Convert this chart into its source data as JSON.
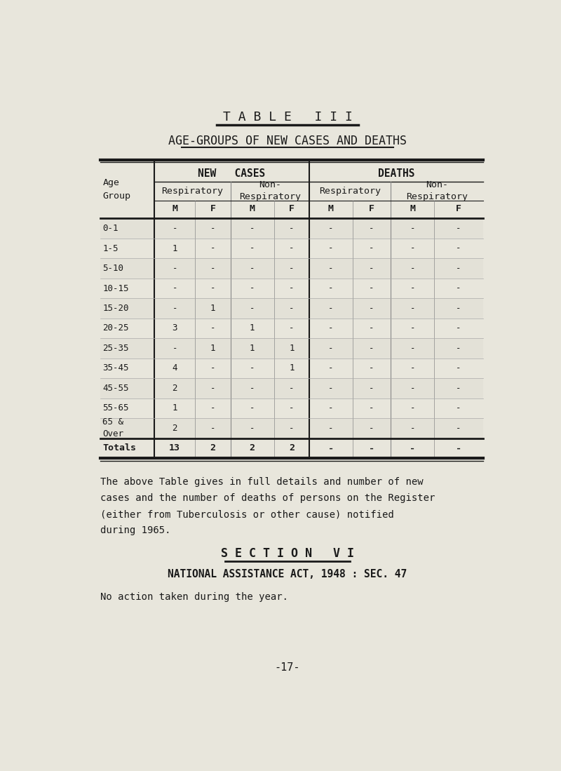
{
  "bg_color": "#e8e6dc",
  "title1": "T A B L E   I I I",
  "title2": "AGE-GROUPS OF NEW CASES AND DEATHS",
  "age_groups": [
    "0-1",
    "1-5",
    "5-10",
    "10-15",
    "15-20",
    "20-25",
    "25-35",
    "35-45",
    "45-55",
    "55-65",
    "65 &\nOver"
  ],
  "data": [
    [
      "-",
      "-",
      "-",
      "-",
      "-",
      "-",
      "-",
      "-"
    ],
    [
      "1",
      "-",
      "-",
      "-",
      "-",
      "-",
      "-",
      "-"
    ],
    [
      "-",
      "-",
      "-",
      "-",
      "-",
      "-",
      "-",
      "-"
    ],
    [
      "-",
      "-",
      "-",
      "-",
      "-",
      "-",
      "-",
      "-"
    ],
    [
      "-",
      "1",
      "-",
      "-",
      "-",
      "-",
      "-",
      "-"
    ],
    [
      "3",
      "-",
      "1",
      "-",
      "-",
      "-",
      "-",
      "-"
    ],
    [
      "-",
      "1",
      "1",
      "1",
      "-",
      "-",
      "-",
      "-"
    ],
    [
      "4",
      "-",
      "-",
      "1",
      "-",
      "-",
      "-",
      "-"
    ],
    [
      "2",
      "-",
      "-",
      "-",
      "-",
      "-",
      "-",
      "-"
    ],
    [
      "1",
      "-",
      "-",
      "-",
      "-",
      "-",
      "-",
      "-"
    ],
    [
      "2",
      "-",
      "-",
      "-",
      "-",
      "-",
      "-",
      "-"
    ]
  ],
  "totals": [
    "13",
    "2",
    "2",
    "2",
    "-",
    "-",
    "-",
    "-"
  ],
  "paragraph_lines": [
    "The above Table gives in full details and number of new",
    "cases and the number of deaths of persons on the Register",
    "(either from Tuberculosis or other cause) notified",
    "during 1965."
  ],
  "section_title": "S E C T I O N   V I",
  "subsection_title": "NATIONAL ASSISTANCE ACT, 1948 : SEC. 47",
  "section_text": "No action taken during the year.",
  "page_number": "-17-"
}
